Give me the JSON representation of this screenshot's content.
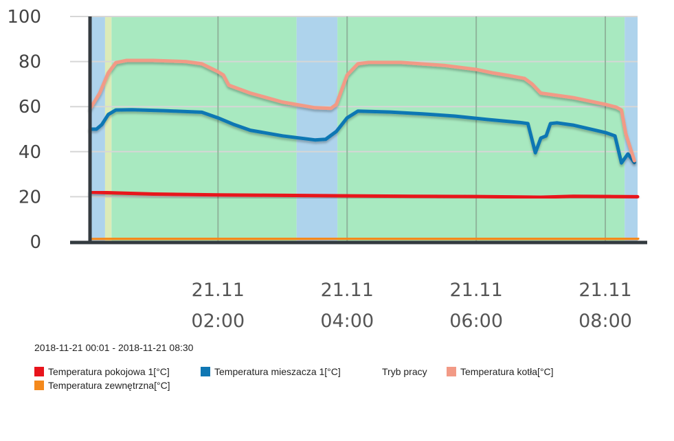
{
  "chart_data": {
    "type": "line",
    "title": "",
    "xlabel": "",
    "ylabel": "",
    "ylim": [
      0,
      100
    ],
    "yticks": [
      0,
      20,
      40,
      60,
      80,
      100
    ],
    "xlim": [
      "00:01",
      "08:30"
    ],
    "xticks": [
      {
        "time": "02:00",
        "label1": "21.11",
        "label2": "02:00"
      },
      {
        "time": "04:00",
        "label1": "21.11",
        "label2": "04:00"
      },
      {
        "time": "06:00",
        "label1": "21.11",
        "label2": "06:00"
      },
      {
        "time": "08:00",
        "label1": "21.11",
        "label2": "08:00"
      }
    ],
    "grid": true,
    "legend_position": "bottom-left",
    "date_range": "2018-11-21 00:01 - 2018-11-21 08:30",
    "background_bands": {
      "name": "Tryb pracy",
      "bands": [
        {
          "start": "00:01",
          "end": "00:15",
          "color": "#aed3ec"
        },
        {
          "start": "00:15",
          "end": "00:21",
          "color": "#dcebb8"
        },
        {
          "start": "00:21",
          "end": "03:13",
          "color": "#a8e9c0"
        },
        {
          "start": "03:13",
          "end": "03:51",
          "color": "#aed3ec"
        },
        {
          "start": "03:51",
          "end": "08:18",
          "color": "#a8e9c0"
        },
        {
          "start": "08:18",
          "end": "08:30",
          "color": "#aed3ec"
        }
      ]
    },
    "series": [
      {
        "name": "Temperatura pokojowa 1[°C]",
        "color": "#e8141c",
        "points": [
          [
            "00:01",
            22
          ],
          [
            "01:00",
            21.2
          ],
          [
            "02:00",
            20.8
          ],
          [
            "03:00",
            20.6
          ],
          [
            "04:00",
            20.4
          ],
          [
            "05:00",
            20.2
          ],
          [
            "06:00",
            20.1
          ],
          [
            "07:00",
            19.8
          ],
          [
            "07:30",
            20.2
          ],
          [
            "08:30",
            20
          ]
        ]
      },
      {
        "name": "Temperatura mieszacza 1[°C]",
        "color": "#0f77b3",
        "points": [
          [
            "00:01",
            50
          ],
          [
            "00:07",
            50
          ],
          [
            "00:12",
            52
          ],
          [
            "00:18",
            56.5
          ],
          [
            "00:25",
            58.5
          ],
          [
            "00:40",
            58.6
          ],
          [
            "01:10",
            58.2
          ],
          [
            "01:45",
            57.5
          ],
          [
            "02:00",
            55
          ],
          [
            "02:15",
            52
          ],
          [
            "02:30",
            49.5
          ],
          [
            "03:00",
            47
          ],
          [
            "03:30",
            45.2
          ],
          [
            "03:40",
            45.5
          ],
          [
            "03:50",
            49
          ],
          [
            "04:00",
            55
          ],
          [
            "04:10",
            58
          ],
          [
            "04:40",
            57.6
          ],
          [
            "05:10",
            56.8
          ],
          [
            "05:40",
            55.8
          ],
          [
            "06:10",
            54.3
          ],
          [
            "06:40",
            53
          ],
          [
            "06:48",
            52.5
          ],
          [
            "06:55",
            39.5
          ],
          [
            "07:00",
            46
          ],
          [
            "07:05",
            47
          ],
          [
            "07:09",
            52.5
          ],
          [
            "07:15",
            52.8
          ],
          [
            "07:30",
            51.8
          ],
          [
            "08:00",
            48.5
          ],
          [
            "08:09",
            47
          ],
          [
            "08:15",
            35
          ],
          [
            "08:21",
            39
          ],
          [
            "08:27",
            35.2
          ]
        ]
      },
      {
        "name": "Temperatura kotła[°C]",
        "color": "#f29a86",
        "points": [
          [
            "00:01",
            59
          ],
          [
            "00:10",
            66
          ],
          [
            "00:18",
            75
          ],
          [
            "00:25",
            79.5
          ],
          [
            "00:35",
            80.5
          ],
          [
            "01:00",
            80.5
          ],
          [
            "01:30",
            80
          ],
          [
            "01:45",
            79
          ],
          [
            "02:00",
            75.5
          ],
          [
            "02:05",
            74
          ],
          [
            "02:10",
            69.5
          ],
          [
            "02:30",
            66
          ],
          [
            "03:00",
            62
          ],
          [
            "03:30",
            59.5
          ],
          [
            "03:45",
            59.2
          ],
          [
            "03:50",
            61
          ],
          [
            "04:00",
            74
          ],
          [
            "04:10",
            79
          ],
          [
            "04:20",
            79.6
          ],
          [
            "04:50",
            79.6
          ],
          [
            "05:30",
            78.3
          ],
          [
            "06:00",
            76.5
          ],
          [
            "06:15",
            75
          ],
          [
            "06:30",
            73.8
          ],
          [
            "06:45",
            72.5
          ],
          [
            "06:52",
            70
          ],
          [
            "07:00",
            66
          ],
          [
            "07:30",
            64
          ],
          [
            "08:00",
            61
          ],
          [
            "08:10",
            59.8
          ],
          [
            "08:15",
            58.5
          ],
          [
            "08:19",
            48
          ],
          [
            "08:27",
            36
          ]
        ]
      },
      {
        "name": "Temperatura zewnętrzna[°C]",
        "color": "#f4891c",
        "points": [
          [
            "00:01",
            1
          ],
          [
            "01:00",
            1.2
          ],
          [
            "02:00",
            1.4
          ],
          [
            "04:00",
            1.6
          ],
          [
            "06:00",
            1.5
          ],
          [
            "08:30",
            1.5
          ]
        ]
      }
    ]
  },
  "legend": [
    {
      "label": "Temperatura pokojowa 1[°C]",
      "color": "#e8141c",
      "swatch": true
    },
    {
      "label": "Temperatura mieszacza 1[°C]",
      "color": "#0f77b3",
      "swatch": true
    },
    {
      "label": "Tryb pracy",
      "color": "",
      "swatch": false
    },
    {
      "label": "Temperatura kotła[°C]",
      "color": "#f29a86",
      "swatch": true
    },
    {
      "label": "Temperatura zewnętrzna[°C]",
      "color": "#f4891c",
      "swatch": true
    }
  ]
}
